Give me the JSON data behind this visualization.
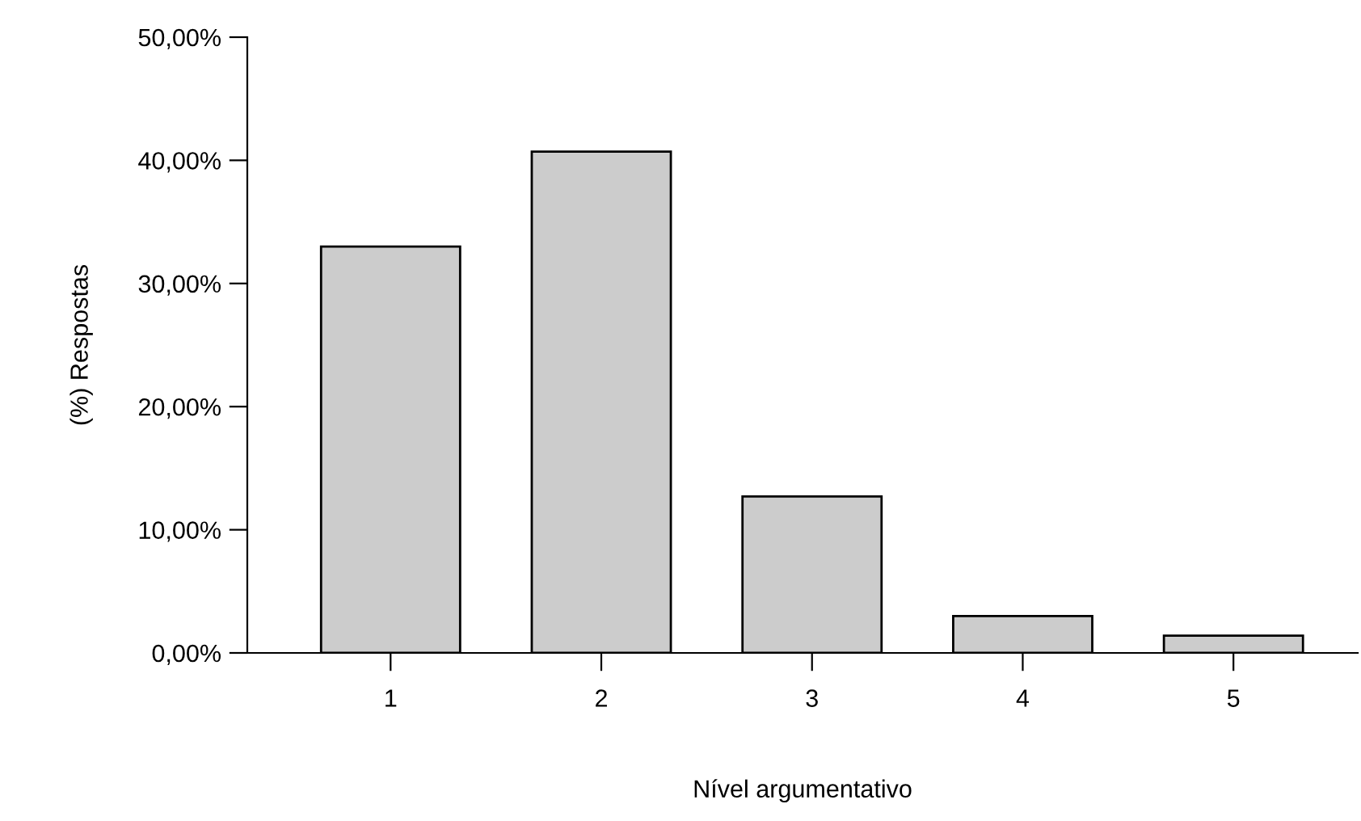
{
  "chart_data": {
    "type": "bar",
    "xlabel": "Nível argumentativo",
    "ylabel": "(%) Respostas",
    "categories": [
      "1",
      "2",
      "3",
      "4",
      "5"
    ],
    "values": [
      33.0,
      40.7,
      12.7,
      3.0,
      1.4
    ],
    "color": "#cccccc",
    "ylim": [
      0,
      50
    ],
    "yticks": [
      {
        "value": 0,
        "label": "0,00%"
      },
      {
        "value": 10,
        "label": "10,00%"
      },
      {
        "value": 20,
        "label": "20,00%"
      },
      {
        "value": 30,
        "label": "30,00%"
      },
      {
        "value": 40,
        "label": "40,00%"
      },
      {
        "value": 50,
        "label": "50,00%"
      }
    ],
    "grid": false,
    "legend": false
  }
}
